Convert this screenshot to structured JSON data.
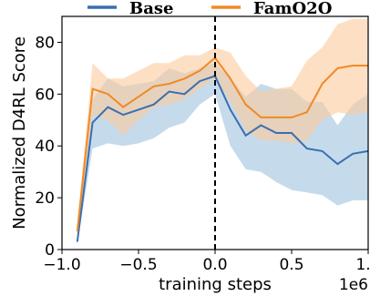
{
  "chart_data": {
    "type": "line",
    "title": "",
    "xlabel": "training steps",
    "ylabel": "Normalized D4RL Score",
    "x_offset_label": "1e6",
    "xlim": [
      -1.0,
      1.0
    ],
    "ylim": [
      0,
      90
    ],
    "xticks": [
      -1.0,
      -0.5,
      0.0,
      0.5,
      1.0
    ],
    "xtick_labels": [
      "−1.0",
      "−0.5",
      "0.0",
      "0.5",
      "1.0"
    ],
    "yticks": [
      0,
      20,
      40,
      60,
      80
    ],
    "ytick_labels": [
      "0",
      "20",
      "40",
      "60",
      "80"
    ],
    "legend_position": "top",
    "grid": false,
    "vline": {
      "x": 0.0,
      "style": "dashed",
      "color": "#000000"
    },
    "x": [
      -0.9,
      -0.8,
      -0.7,
      -0.6,
      -0.5,
      -0.4,
      -0.3,
      -0.2,
      -0.1,
      0.0,
      0.1,
      0.2,
      0.3,
      0.4,
      0.5,
      0.6,
      0.7,
      0.8,
      0.9,
      1.0
    ],
    "series": [
      {
        "name": "Base",
        "color": "#3a6fb0",
        "band_color": "#9fc3e0",
        "values": [
          3,
          49,
          55,
          52,
          54,
          56,
          61,
          60,
          65,
          67,
          54,
          44,
          48,
          45,
          45,
          39,
          38,
          33,
          37,
          38
        ],
        "lower": [
          2,
          39,
          41,
          40,
          41,
          43,
          47,
          49,
          56,
          60,
          40,
          31,
          30,
          26,
          23,
          22,
          21,
          17,
          19,
          19
        ],
        "upper": [
          5,
          58,
          66,
          63,
          64,
          65,
          70,
          68,
          70,
          72,
          66,
          59,
          64,
          62,
          62,
          57,
          57,
          48,
          56,
          60
        ]
      },
      {
        "name": "FamO2O",
        "color": "#f08a25",
        "band_color": "#fcc99d",
        "values": [
          7,
          62,
          60,
          55,
          59,
          63,
          64,
          66,
          69,
          74,
          66,
          56,
          51,
          51,
          51,
          53,
          64,
          70,
          71,
          71
        ],
        "lower": [
          5,
          52,
          50,
          44,
          50,
          55,
          56,
          58,
          62,
          66,
          57,
          46,
          42,
          42,
          41,
          42,
          50,
          53,
          52,
          53
        ],
        "upper": [
          10,
          72,
          66,
          66,
          69,
          72,
          72,
          75,
          75,
          78,
          76,
          67,
          61,
          62,
          63,
          73,
          78,
          87,
          89,
          89
        ]
      }
    ]
  }
}
